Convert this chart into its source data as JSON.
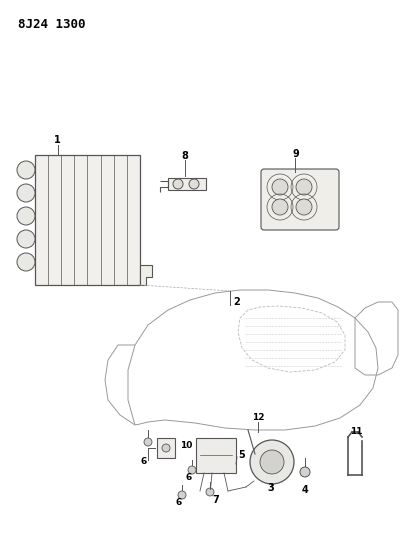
{
  "title": "8J24 1300",
  "bg_color": "#ffffff",
  "title_fontsize": 9,
  "fig_size": [
    4.02,
    5.33
  ],
  "dpi": 100,
  "line_color": "#555555",
  "light_gray": "#aaaaaa"
}
